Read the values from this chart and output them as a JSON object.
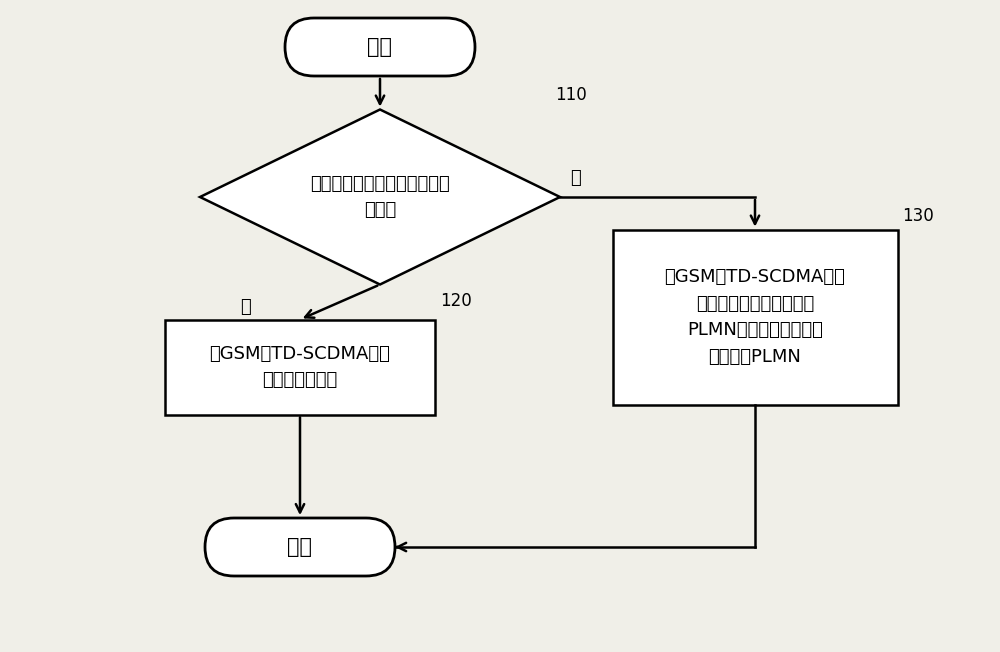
{
  "bg_color": "#f0efe8",
  "shape_color": "#ffffff",
  "border_color": "#000000",
  "line_color": "#000000",
  "text_color": "#000000",
  "title_start": "开始",
  "title_end": "结束",
  "diamond_text": "是否为自动网络选择模式下的\n选网？",
  "box120_text": "在GSM、TD-SCDMA下并\n行发起选网过程",
  "box130_text": "在GSM、TD-SCDMA下分\n别搜索出含有小区覆盖的\nPLMN列表，供用户选择\n待接入的PLMN",
  "label_110": "110",
  "label_120": "120",
  "label_130": "130",
  "label_yes": "是",
  "label_no": "否",
  "font_size_main": 15,
  "font_size_small": 13,
  "font_size_annotation": 12
}
